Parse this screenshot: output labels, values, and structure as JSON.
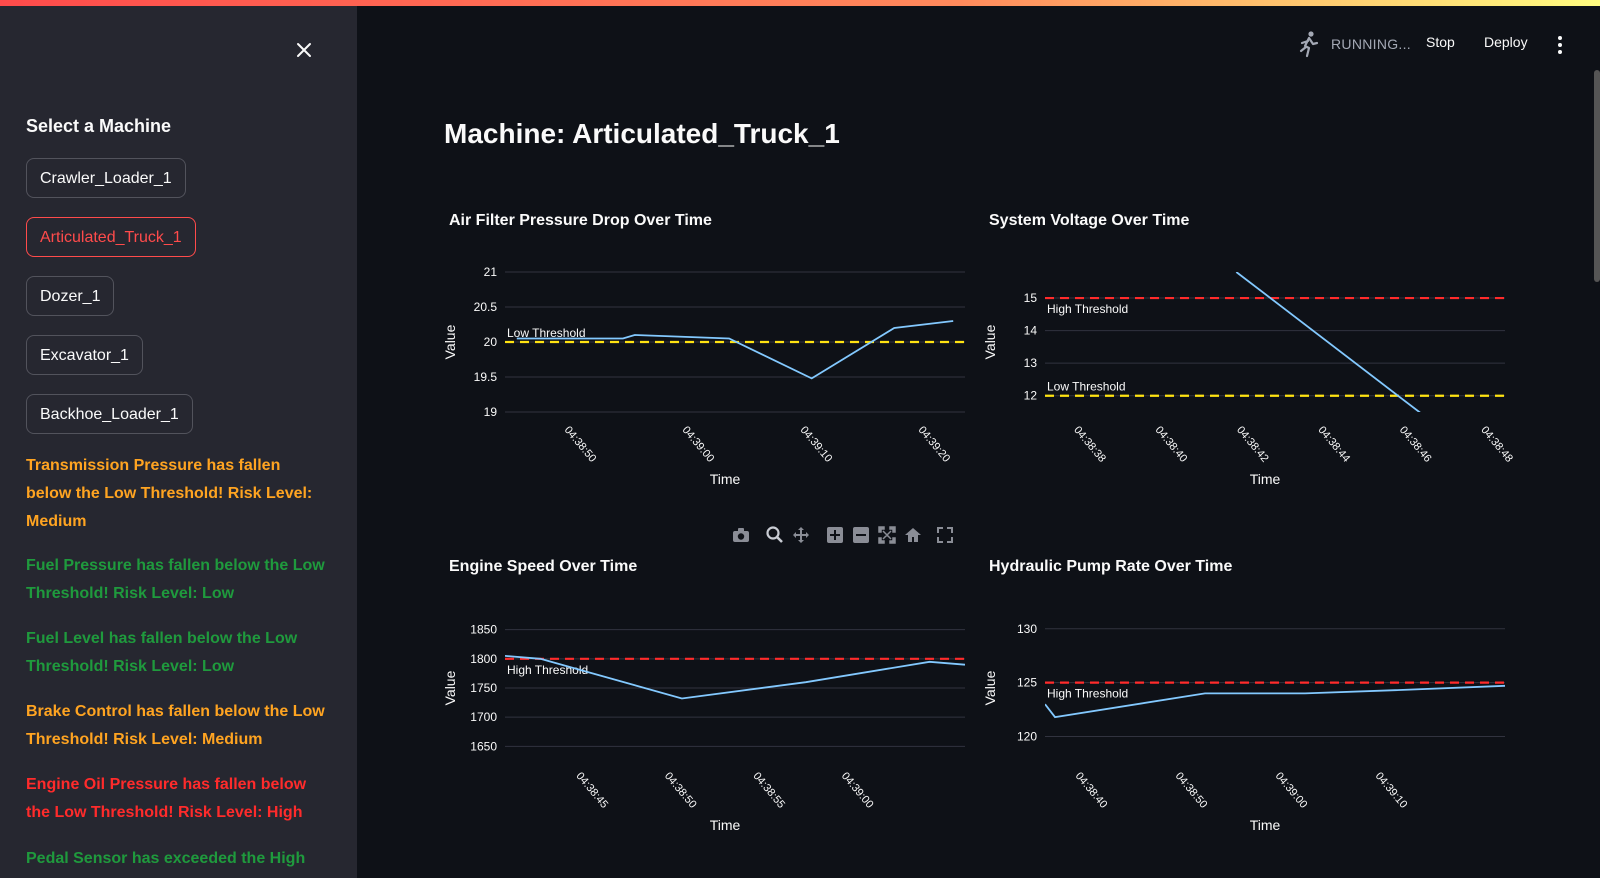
{
  "sidebar": {
    "title": "Select a Machine",
    "machines": [
      {
        "label": "Crawler_Loader_1",
        "active": false
      },
      {
        "label": "Articulated_Truck_1",
        "active": true
      },
      {
        "label": "Dozer_1",
        "active": false
      },
      {
        "label": "Excavator_1",
        "active": false
      },
      {
        "label": "Backhoe_Loader_1",
        "active": false
      }
    ],
    "alerts": [
      {
        "text": "Transmission Pressure has fallen below the Low Threshold! Risk Level: Medium",
        "level": "medium"
      },
      {
        "text": "Fuel Pressure has fallen below the Low Threshold! Risk Level: Low",
        "level": "low"
      },
      {
        "text": "Fuel Level has fallen below the Low Threshold! Risk Level: Low",
        "level": "low"
      },
      {
        "text": "Brake Control has fallen below the Low Threshold! Risk Level: Medium",
        "level": "medium"
      },
      {
        "text": "Engine Oil Pressure has fallen below the Low Threshold! Risk Level: High",
        "level": "high"
      },
      {
        "text": "Pedal Sensor has exceeded the High",
        "level": "low"
      }
    ]
  },
  "header": {
    "status": "RUNNING...",
    "stop_label": "Stop",
    "deploy_label": "Deploy"
  },
  "main": {
    "title": "Machine: Articulated_Truck_1"
  },
  "colors": {
    "background": "#0e1117",
    "sidebar": "#262730",
    "accent": "#ff4b4b",
    "line": "#83c9ff",
    "high_threshold": "#ff2b2b",
    "low_threshold": "#ffe312"
  },
  "chart_data": [
    {
      "type": "line",
      "title": "Air Filter Pressure Drop Over Time",
      "xlabel": "Time",
      "ylabel": "Value",
      "x_ticks": [
        "04:38:50",
        "04:39:00",
        "04:39:10",
        "04:39:20"
      ],
      "y_ticks": [
        19,
        19.5,
        20,
        20.5,
        21
      ],
      "ylim": [
        19,
        21
      ],
      "x": [
        "04:38:46",
        "04:38:50",
        "04:38:55",
        "04:38:56",
        "04:39:04",
        "04:39:11",
        "04:39:18",
        "04:39:23"
      ],
      "values": [
        20.05,
        20.05,
        20.05,
        20.1,
        20.05,
        19.48,
        20.2,
        20.3
      ],
      "thresholds": [
        {
          "label": "Low Threshold",
          "value": 20,
          "color": "#ffe312"
        }
      ]
    },
    {
      "type": "line",
      "title": "System Voltage Over Time",
      "xlabel": "Time",
      "ylabel": "Value",
      "x_ticks": [
        "04:38:38",
        "04:38:40",
        "04:38:42",
        "04:38:44",
        "04:38:46",
        "04:38:48"
      ],
      "y_ticks": [
        12,
        13,
        14,
        15
      ],
      "ylim": [
        11.5,
        15.8
      ],
      "x": [
        "04:38:42",
        "04:38:46.6"
      ],
      "values": [
        15.8,
        11.4
      ],
      "thresholds": [
        {
          "label": "High Threshold",
          "value": 15,
          "color": "#ff2b2b"
        },
        {
          "label": "Low Threshold",
          "value": 12,
          "color": "#ffe312"
        }
      ]
    },
    {
      "type": "line",
      "title": "Engine Speed Over Time",
      "xlabel": "Time",
      "ylabel": "Value",
      "x_ticks": [
        "04:38:45",
        "04:38:50",
        "04:38:55",
        "04:39:00"
      ],
      "y_ticks": [
        1650,
        1700,
        1750,
        1800,
        1850
      ],
      "ylim": [
        1630,
        1870
      ],
      "x": [
        "04:38:41",
        "04:38:43",
        "04:38:51",
        "04:38:58",
        "04:39:05",
        "04:39:07"
      ],
      "values": [
        1805,
        1800,
        1732,
        1760,
        1795,
        1790
      ],
      "thresholds": [
        {
          "label": "High Threshold",
          "value": 1800,
          "color": "#ff2b2b"
        }
      ]
    },
    {
      "type": "line",
      "title": "Hydraulic Pump Rate Over Time",
      "xlabel": "Time",
      "ylabel": "Value",
      "x_ticks": [
        "04:38:40",
        "04:38:50",
        "04:39:00",
        "04:39:10"
      ],
      "y_ticks": [
        120,
        125,
        130
      ],
      "ylim": [
        118,
        131
      ],
      "x": [
        "04:38:37",
        "04:38:38",
        "04:38:53",
        "04:39:03",
        "04:39:12",
        "04:39:23"
      ],
      "values": [
        123,
        121.8,
        124,
        124,
        124.3,
        124.7
      ],
      "thresholds": [
        {
          "label": "High Threshold",
          "value": 125,
          "color": "#ff2b2b"
        }
      ]
    }
  ]
}
